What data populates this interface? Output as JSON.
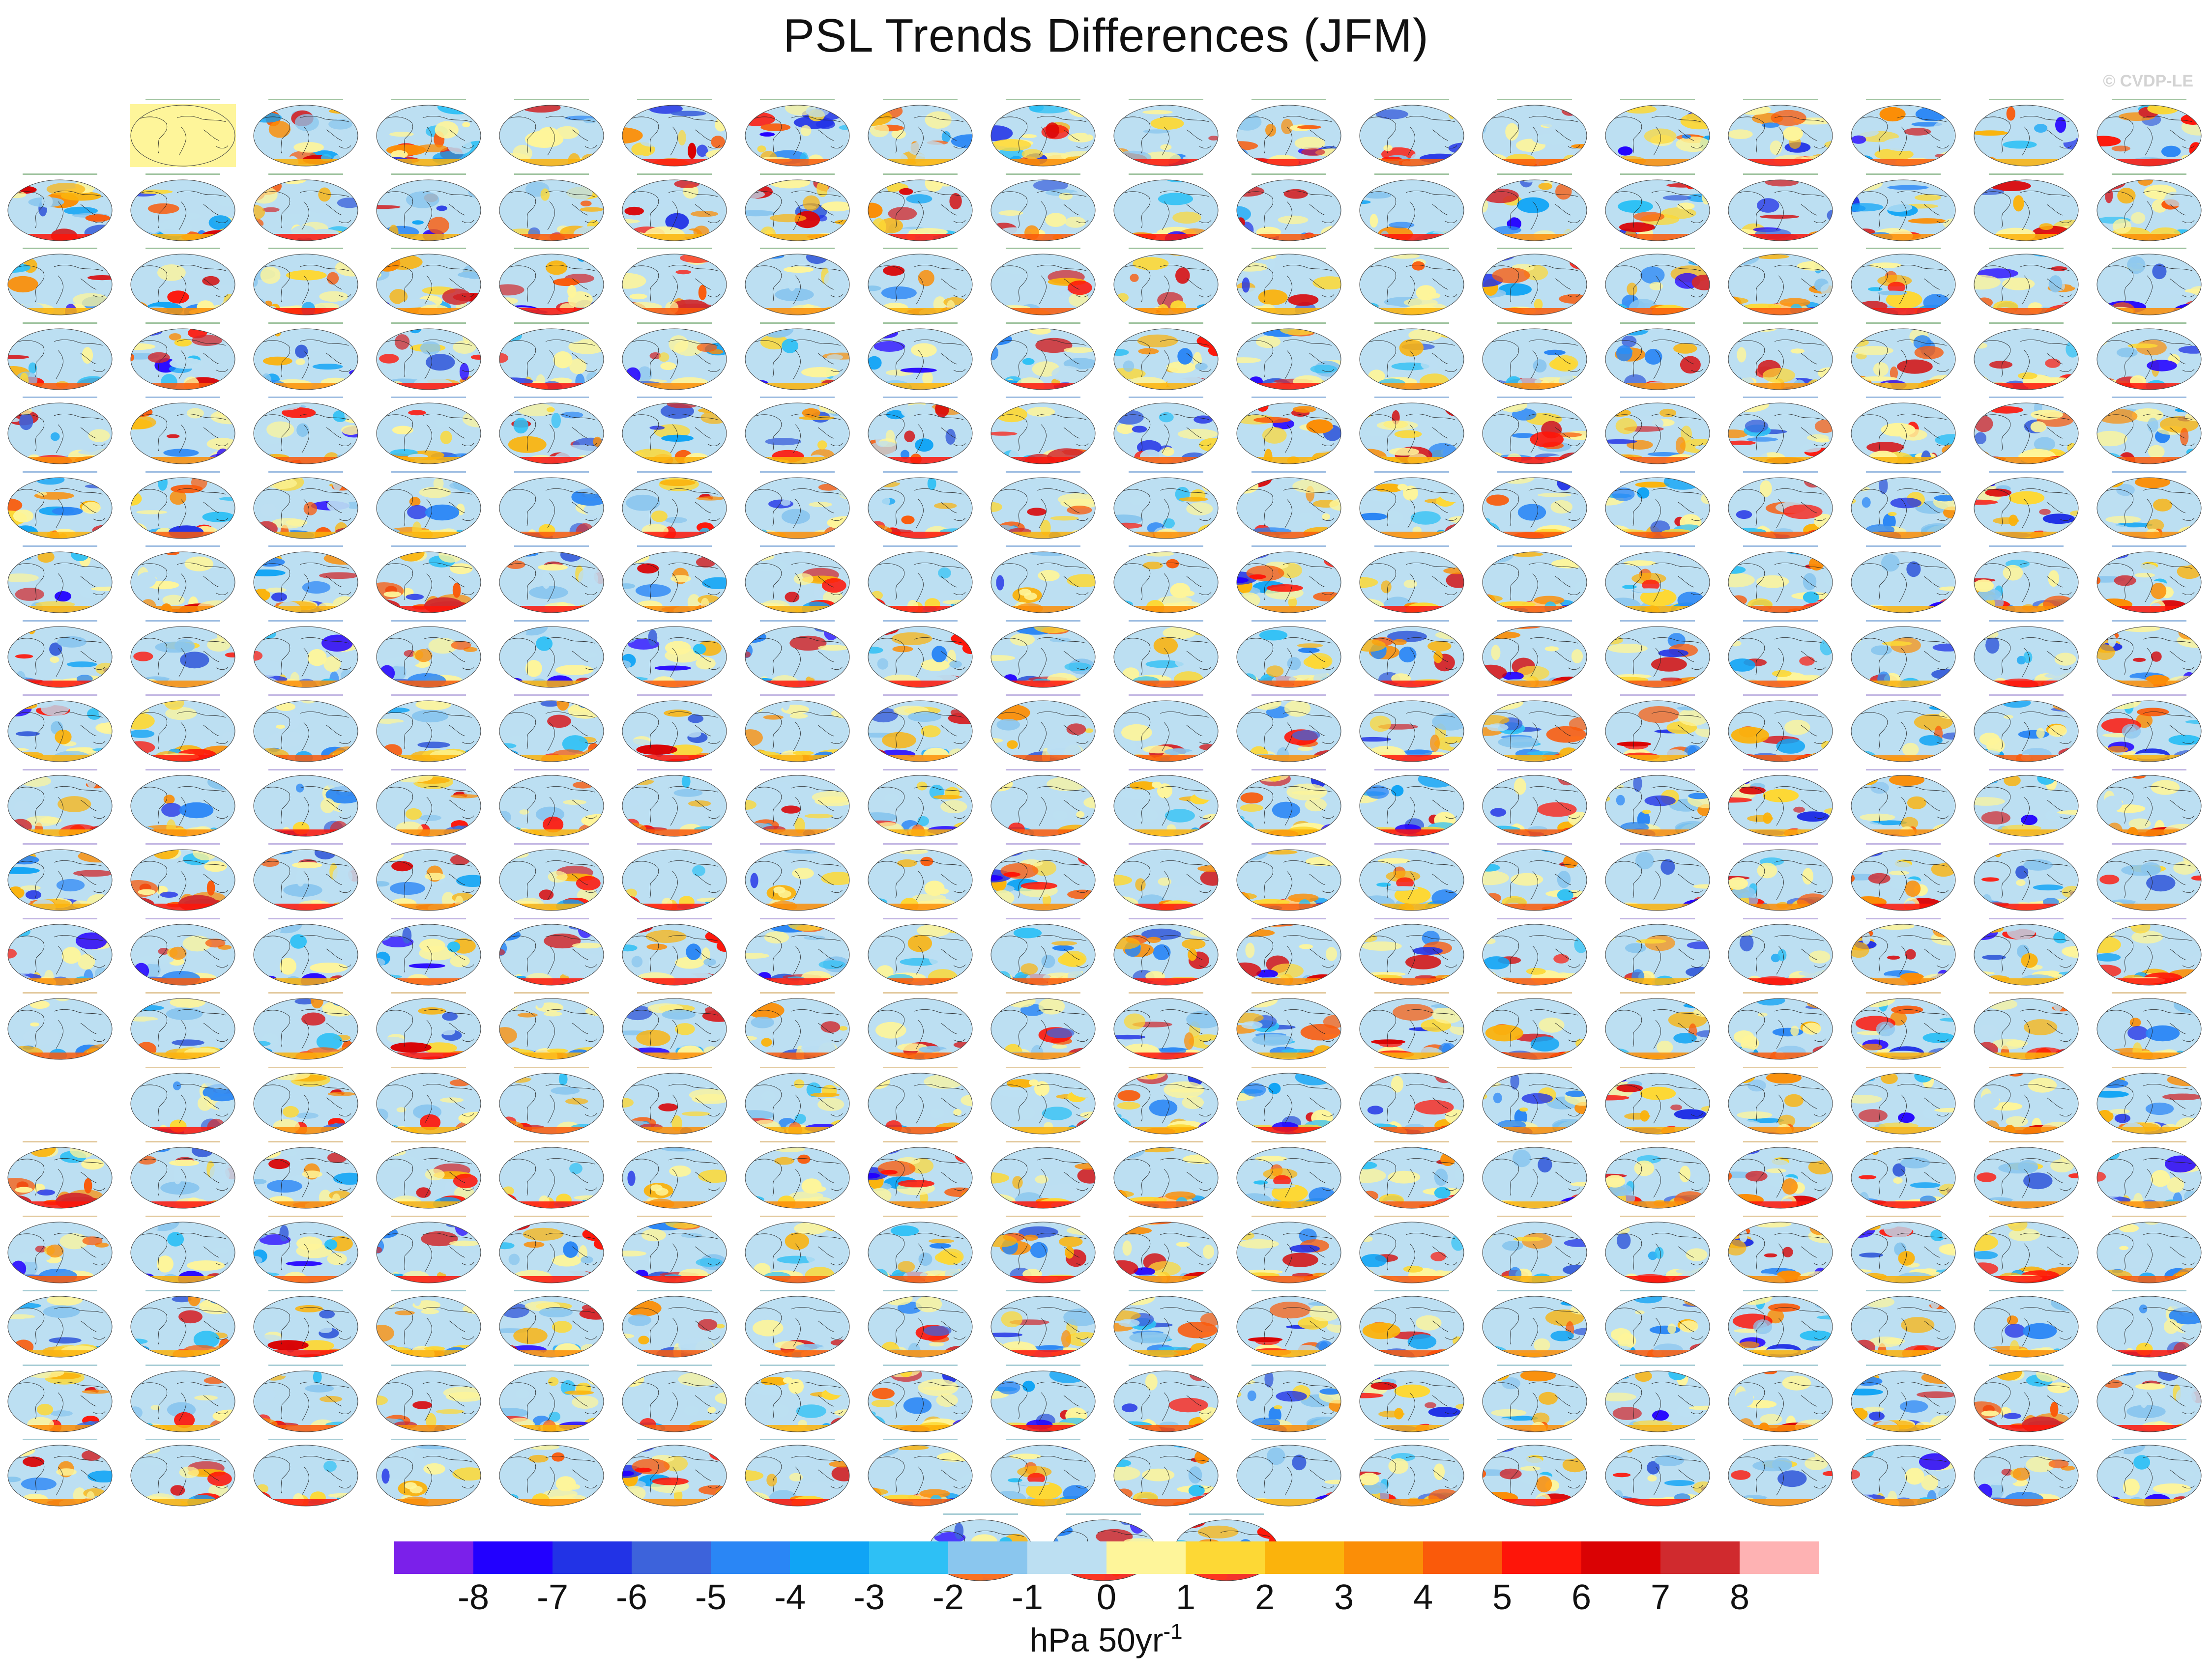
{
  "title": "PSL Trends Differences (JFM)",
  "watermark": "© CVDP-LE",
  "colorbar": {
    "colors": [
      "#7b20ea",
      "#2200ff",
      "#2233e6",
      "#3d63db",
      "#2a86f5",
      "#10a4f5",
      "#2ec0f5",
      "#8ac6ee",
      "#bcdff2",
      "#fef59a",
      "#fdd835",
      "#fbb30c",
      "#fb8e07",
      "#fa5a0a",
      "#fe1509",
      "#da0204",
      "#d02a2e",
      "#feb2b3"
    ],
    "tick_labels": [
      "-8",
      "-7",
      "-6",
      "-5",
      "-4",
      "-3",
      "-2",
      "-1",
      "0",
      "1",
      "2",
      "3",
      "4",
      "5",
      "6",
      "7",
      "8"
    ]
  },
  "units": {
    "base": "hPa 50yr",
    "superscript": "-1"
  },
  "panels": {
    "rows_full": 19,
    "cols": 18,
    "bottom_extra": 3,
    "reference_panel_fill": "#fef59a",
    "ocean_color": "#bcdff2",
    "label_colors": [
      "#2a7a2a",
      "#2a6fbf",
      "#7a5fc0",
      "#c28a2a",
      "#3a8fa0"
    ]
  }
}
